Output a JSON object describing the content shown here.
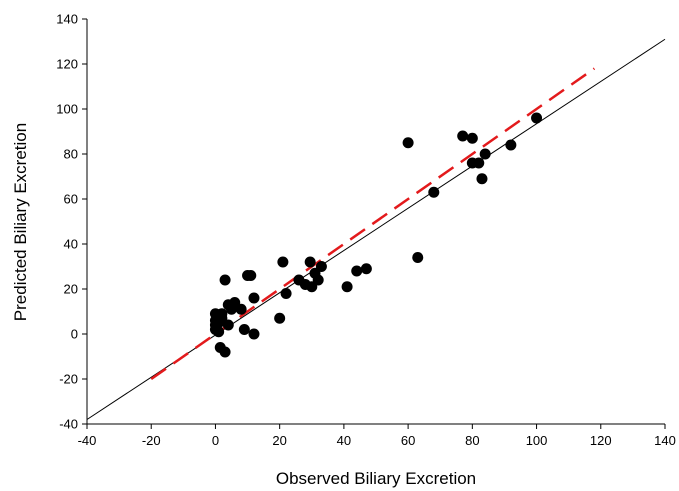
{
  "chart_data": {
    "type": "scatter",
    "xlabel": "Observed Biliary Excretion",
    "ylabel": "Predicted Biliary Excretion",
    "xlim": [
      -40,
      140
    ],
    "ylim": [
      -40,
      140
    ],
    "xticks": [
      -40,
      -20,
      0,
      20,
      40,
      60,
      80,
      100,
      120,
      140
    ],
    "yticks": [
      -40,
      -20,
      0,
      20,
      40,
      60,
      80,
      100,
      120,
      140
    ],
    "grid": false,
    "colors": {
      "points": "#000000",
      "identity_line": "#000000",
      "regression_line": "#e31a1c"
    },
    "points": [
      {
        "x": 0,
        "y": 2
      },
      {
        "x": 0,
        "y": 4
      },
      {
        "x": 0,
        "y": 6
      },
      {
        "x": 0,
        "y": 9
      },
      {
        "x": 1,
        "y": 1
      },
      {
        "x": 1,
        "y": 5
      },
      {
        "x": 1,
        "y": 8
      },
      {
        "x": 1.5,
        "y": -6
      },
      {
        "x": 2,
        "y": 7
      },
      {
        "x": 2,
        "y": 9
      },
      {
        "x": 3,
        "y": 24
      },
      {
        "x": 3,
        "y": -8
      },
      {
        "x": 4,
        "y": 13
      },
      {
        "x": 4,
        "y": 4
      },
      {
        "x": 5,
        "y": 11
      },
      {
        "x": 6,
        "y": 14
      },
      {
        "x": 8,
        "y": 11
      },
      {
        "x": 9,
        "y": 2
      },
      {
        "x": 10,
        "y": 26
      },
      {
        "x": 11,
        "y": 26
      },
      {
        "x": 12,
        "y": 0
      },
      {
        "x": 12,
        "y": 16
      },
      {
        "x": 20,
        "y": 7
      },
      {
        "x": 21,
        "y": 32
      },
      {
        "x": 22,
        "y": 18
      },
      {
        "x": 26,
        "y": 24
      },
      {
        "x": 28,
        "y": 22
      },
      {
        "x": 29.5,
        "y": 32
      },
      {
        "x": 30,
        "y": 21
      },
      {
        "x": 31,
        "y": 27
      },
      {
        "x": 32,
        "y": 24
      },
      {
        "x": 33,
        "y": 30
      },
      {
        "x": 41,
        "y": 21
      },
      {
        "x": 44,
        "y": 28
      },
      {
        "x": 47,
        "y": 29
      },
      {
        "x": 60,
        "y": 85
      },
      {
        "x": 63,
        "y": 34
      },
      {
        "x": 68,
        "y": 63
      },
      {
        "x": 77,
        "y": 88
      },
      {
        "x": 80,
        "y": 87
      },
      {
        "x": 80,
        "y": 76
      },
      {
        "x": 82,
        "y": 76
      },
      {
        "x": 83,
        "y": 69
      },
      {
        "x": 84,
        "y": 80
      },
      {
        "x": 92,
        "y": 84
      },
      {
        "x": 100,
        "y": 96
      }
    ],
    "identity_line": {
      "x": [
        -40,
        140
      ],
      "y": [
        -38,
        131
      ]
    },
    "regression_line": {
      "x": [
        -20,
        118
      ],
      "y": [
        -20,
        118
      ],
      "style": "dashed"
    }
  }
}
